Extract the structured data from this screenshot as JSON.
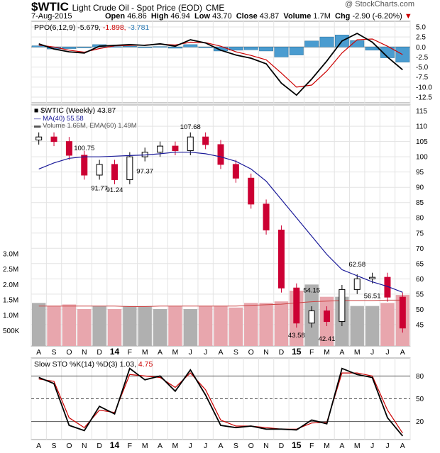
{
  "header": {
    "symbol": "$WTIC",
    "name": "Light Crude Oil - Spot Price (EOD)",
    "exchange": "CME",
    "brand": "@ StockCharts.com",
    "date": "7-Aug-2015",
    "open_label": "Open",
    "open": "46.86",
    "high_label": "High",
    "high": "46.94",
    "low_label": "Low",
    "low": "43.70",
    "close_label": "Close",
    "close": "43.87",
    "volume_label": "Volume",
    "volume": "1.7M",
    "chg_label": "Chg",
    "chg": "-2.90 (-6.20%)",
    "chg_arrow": "▼"
  },
  "ppo_panel": {
    "legend_prefix": "PPO(6,12,9)",
    "ppo": "-5.679,",
    "signal": "-1.898,",
    "hist": "-3.781",
    "colors": {
      "ppo": "#000000",
      "signal": "#cc0000",
      "hist": "#4a9cd0"
    }
  },
  "price_panel": {
    "legend_title": "$WTIC (Weekly) 43.87",
    "ma_label": "MA(40) 55.58",
    "volume_label": "Volume 1.66M, EMA(60) 1.49M",
    "colors": {
      "up": "#000000",
      "down": "#cc0033",
      "ma": "#1a1a99",
      "vol_down": "#e8a6ad",
      "vol_up": "#b0b0b0",
      "vol_ema": "#cc4444"
    }
  },
  "sto_panel": {
    "legend_prefix": "Slow STO %K(14) %D(3)",
    "k": "1.03,",
    "d": "4.75"
  },
  "chart_data": [
    {
      "type": "line",
      "title": "PPO(6,12,9)",
      "x": [
        "A",
        "S",
        "O",
        "N",
        "D",
        "14",
        "F",
        "M",
        "A",
        "M",
        "J",
        "J",
        "A",
        "S",
        "O",
        "N",
        "D",
        "15",
        "F",
        "M",
        "A",
        "M",
        "J",
        "J",
        "A"
      ],
      "ylim": [
        -12.5,
        5.0
      ],
      "yticks": [
        "5.0",
        "2.5",
        "0.0",
        "-2.5",
        "-5.0",
        "-7.5",
        "-10.0",
        "-12.5"
      ],
      "series": [
        {
          "values": [
            0.8,
            -0.5,
            -1.2,
            -1.5,
            0.2,
            0.4,
            0.6,
            0.4,
            0.8,
            0.2,
            1.8,
            1.0,
            -0.8,
            -2.0,
            -2.8,
            -4.2,
            -9.0,
            -12.0,
            -8.0,
            -3.5,
            1.5,
            3.4,
            1.2,
            -2.5,
            -5.679
          ]
        },
        {
          "values": [
            0.5,
            0.0,
            -0.8,
            -1.3,
            -0.4,
            0.3,
            0.4,
            0.5,
            0.7,
            0.5,
            1.2,
            1.1,
            0.2,
            -1.2,
            -2.1,
            -3.2,
            -6.5,
            -10.0,
            -9.5,
            -6.0,
            -1.5,
            1.8,
            2.0,
            0.2,
            -1.898
          ]
        },
        {
          "values": [
            0.3,
            -0.5,
            -0.4,
            -0.2,
            0.6,
            0.1,
            0.2,
            -0.1,
            0.1,
            -0.3,
            0.6,
            -0.1,
            -1.0,
            -0.8,
            -0.7,
            -1.0,
            -2.5,
            -2.0,
            1.5,
            2.5,
            3.0,
            1.6,
            -0.8,
            -2.7,
            -3.781
          ]
        }
      ]
    },
    {
      "type": "candlestick",
      "title": "$WTIC (Weekly) 43.87",
      "x": [
        "A",
        "S",
        "O",
        "N",
        "D",
        "14",
        "F",
        "M",
        "A",
        "M",
        "J",
        "J",
        "A",
        "S",
        "O",
        "N",
        "D",
        "15",
        "F",
        "M",
        "A",
        "M",
        "J",
        "J",
        "A"
      ],
      "ylim": [
        40,
        115
      ],
      "yticks": [
        "115",
        "110",
        "105",
        "100",
        "95",
        "90",
        "85",
        "80",
        "75",
        "70",
        "65",
        "60",
        "55",
        "50",
        "45"
      ],
      "closes": [
        106.5,
        105.0,
        100.5,
        94.0,
        97.5,
        92.5,
        100.0,
        101.5,
        103.5,
        102.0,
        106.5,
        104.0,
        97.5,
        93.0,
        84.5,
        76.0,
        57.0,
        45.5,
        49.5,
        46.0,
        56.5,
        60.0,
        60.5,
        54.0,
        43.87
      ],
      "ma40": [
        96.0,
        98.0,
        99.5,
        100.0,
        100.0,
        100.2,
        100.4,
        100.6,
        101.0,
        101.5,
        101.5,
        101.0,
        100.0,
        98.5,
        96.0,
        92.0,
        86.0,
        80.0,
        74.0,
        68.0,
        63.0,
        61.0,
        59.0,
        57.5,
        55.58
      ],
      "annotations": [
        {
          "label": "100.75",
          "value": 100.75
        },
        {
          "label": "91.77",
          "value": 91.77
        },
        {
          "label": "91.24",
          "value": 91.24
        },
        {
          "label": "97.37",
          "value": 97.37
        },
        {
          "label": "107.68",
          "value": 107.68
        },
        {
          "label": "43.58",
          "value": 43.58
        },
        {
          "label": "54.15",
          "value": 54.15
        },
        {
          "label": "42.41",
          "value": 42.41
        },
        {
          "label": "62.58",
          "value": 62.58
        },
        {
          "label": "56.51",
          "value": 56.51
        }
      ]
    },
    {
      "type": "bar",
      "title": "Volume",
      "x": [
        "A",
        "S",
        "O",
        "N",
        "D",
        "14",
        "F",
        "M",
        "A",
        "M",
        "J",
        "J",
        "A",
        "S",
        "O",
        "N",
        "D",
        "15",
        "F",
        "M",
        "A",
        "M",
        "J",
        "J",
        "A"
      ],
      "ylim": [
        0,
        3.0
      ],
      "yticks": [
        "3.0M",
        "2.5M",
        "2.0M",
        "1.5M",
        "1.0M",
        "500K"
      ],
      "values": [
        1.4,
        1.3,
        1.35,
        1.2,
        1.3,
        1.2,
        1.3,
        1.3,
        1.2,
        1.3,
        1.2,
        1.3,
        1.3,
        1.25,
        1.4,
        1.4,
        1.45,
        1.8,
        2.0,
        1.6,
        1.6,
        1.3,
        1.3,
        1.4,
        1.66
      ],
      "ema": [
        1.3,
        1.3,
        1.3,
        1.3,
        1.3,
        1.3,
        1.28,
        1.28,
        1.3,
        1.3,
        1.3,
        1.3,
        1.3,
        1.3,
        1.32,
        1.34,
        1.36,
        1.4,
        1.44,
        1.46,
        1.48,
        1.48,
        1.48,
        1.49,
        1.49
      ]
    },
    {
      "type": "line",
      "title": "Slow STO %K(14) %D(3)",
      "x": [
        "A",
        "S",
        "O",
        "N",
        "D",
        "14",
        "F",
        "M",
        "A",
        "M",
        "J",
        "J",
        "A",
        "S",
        "O",
        "N",
        "D",
        "15",
        "F",
        "M",
        "A",
        "M",
        "J",
        "J",
        "A"
      ],
      "ylim": [
        0,
        100
      ],
      "yticks": [
        "80",
        "50",
        "20"
      ],
      "series": [
        {
          "values": [
            78,
            70,
            15,
            8,
            40,
            30,
            90,
            75,
            80,
            60,
            88,
            55,
            15,
            12,
            14,
            10,
            10,
            9,
            22,
            17,
            90,
            82,
            78,
            25,
            1.03
          ]
        },
        {
          "values": [
            76,
            73,
            25,
            12,
            35,
            32,
            82,
            80,
            78,
            65,
            84,
            62,
            22,
            14,
            14,
            12,
            10,
            10,
            18,
            19,
            84,
            84,
            80,
            35,
            4.75
          ]
        }
      ]
    }
  ]
}
